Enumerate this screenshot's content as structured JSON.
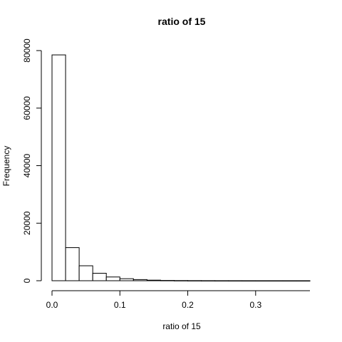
{
  "chart_data": {
    "type": "bar",
    "title": "ratio of 15",
    "xlabel": "ratio of 15",
    "ylabel": "Frequency",
    "bin_width": 0.02,
    "x_range": [
      0,
      0.38
    ],
    "xlim": [
      0,
      0.38
    ],
    "ylim": [
      0,
      80000
    ],
    "x_ticks": [
      "0.0",
      "0.1",
      "0.2",
      "0.3"
    ],
    "y_ticks": [
      "0",
      "20000",
      "40000",
      "60000",
      "80000"
    ],
    "bins": [
      {
        "start": 0.0,
        "end": 0.02,
        "value": 78500
      },
      {
        "start": 0.02,
        "end": 0.04,
        "value": 11500
      },
      {
        "start": 0.04,
        "end": 0.06,
        "value": 5200
      },
      {
        "start": 0.06,
        "end": 0.08,
        "value": 2600
      },
      {
        "start": 0.08,
        "end": 0.1,
        "value": 1300
      },
      {
        "start": 0.1,
        "end": 0.12,
        "value": 700
      },
      {
        "start": 0.12,
        "end": 0.14,
        "value": 400
      },
      {
        "start": 0.14,
        "end": 0.16,
        "value": 200
      },
      {
        "start": 0.16,
        "end": 0.18,
        "value": 100
      },
      {
        "start": 0.18,
        "end": 0.2,
        "value": 60
      },
      {
        "start": 0.2,
        "end": 0.22,
        "value": 40
      },
      {
        "start": 0.22,
        "end": 0.24,
        "value": 25
      },
      {
        "start": 0.24,
        "end": 0.26,
        "value": 15
      },
      {
        "start": 0.26,
        "end": 0.28,
        "value": 10
      },
      {
        "start": 0.28,
        "end": 0.3,
        "value": 6
      },
      {
        "start": 0.3,
        "end": 0.32,
        "value": 4
      },
      {
        "start": 0.32,
        "end": 0.34,
        "value": 3
      },
      {
        "start": 0.34,
        "end": 0.36,
        "value": 2
      },
      {
        "start": 0.36,
        "end": 0.38,
        "value": 1
      }
    ],
    "grid": false,
    "legend": "none"
  }
}
